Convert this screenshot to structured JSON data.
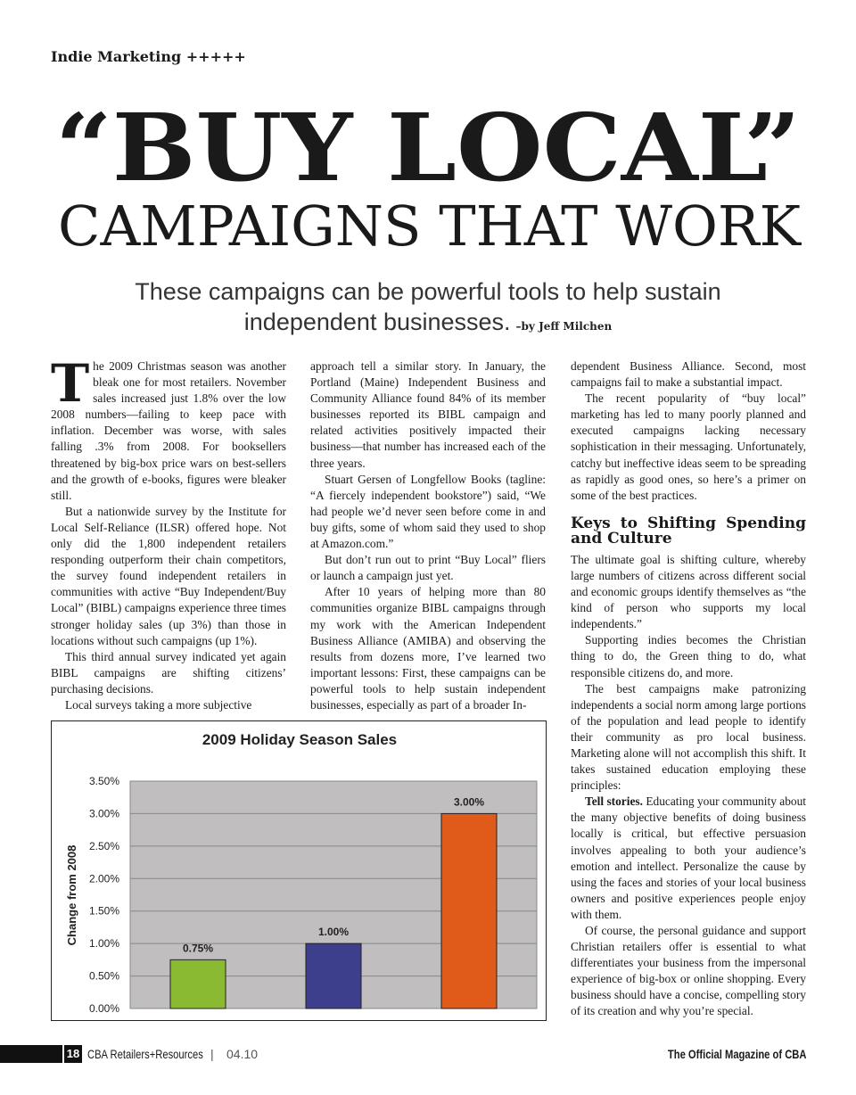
{
  "header": {
    "section": "Indie Marketing +++++"
  },
  "headline": {
    "title": "“BUY LOCAL”",
    "subtitle": "CAMPAIGNS THAT WORK"
  },
  "dek": {
    "text": "These campaigns can be powerful tools to help sustain independent businesses.",
    "byline": "–by Jeff Milchen"
  },
  "body": {
    "columns": [
      [
        {
          "dropcap": "T",
          "text": "he 2009 Christmas season was another bleak one for most retailers. November sales increased just 1.8% over the low 2008 numbers—failing to keep pace with inflation. December was worse, with sales falling .3% from 2008. For booksellers threatened by big-box price wars on best-sellers and the growth of e-books, figures were bleaker still."
        },
        {
          "text": "But a nationwide survey by the Institute for Local Self-Reliance (ILSR) offered hope. Not only did the 1,800 independent retailers responding outperform their chain competitors, the survey found independent retailers in communities with active “Buy Independent/Buy Local” (BIBL) campaigns experience three times stronger holiday sales (up 3%) than those in locations without such campaigns (up 1%)."
        },
        {
          "text": "This third annual survey indicated yet again BIBL campaigns are shifting citizens’ purchasing decisions."
        },
        {
          "text": "Local surveys taking a more subjective"
        }
      ],
      [
        {
          "text": "approach tell a similar story. In January, the Portland (Maine) Independent Business and Community Alliance found 84% of its member businesses reported its BIBL campaign and related activities positively impacted their business—that number has increased each of the three years."
        },
        {
          "text": "Stuart Gersen of Longfellow Books (tagline: “A fiercely independent bookstore”) said, “We had people we’d never seen before come in and buy gifts, some of whom said they used to shop at Amazon.com.”"
        },
        {
          "text": "But don’t run out to print “Buy Local” fliers or launch a campaign just yet."
        },
        {
          "text": "After 10 years of helping more than 80 communities organize BIBL campaigns through my work with the American Independent Business Alliance (AMIBA) and observing the results from dozens more, I’ve learned two important lessons: First, these campaigns can be powerful tools to help sustain independent businesses, especially as part of a broader In-"
        }
      ],
      [
        {
          "text": "dependent Business Alliance. Second, most campaigns fail to make a substantial impact."
        },
        {
          "text": "The recent popularity of “buy local” marketing has led to many poorly planned and executed campaigns lacking necessary sophistication in their messaging. Unfortunately, catchy but ineffective ideas seem to be spreading as rapidly as good ones, so here’s a primer on some of the best practices."
        },
        {
          "heading": "Keys to Shifting Spending and Culture"
        },
        {
          "text": "The ultimate goal is shifting culture, whereby large numbers of citizens across different social and economic groups identify themselves as “the kind of person who supports my local independents.”"
        },
        {
          "text": "Supporting indies becomes the Christian thing to do, the Green thing to do, what responsible citizens do, and more."
        },
        {
          "text": "The best campaigns make patronizing independents a social norm among large portions of the population and lead people to identify their community as pro local business. Marketing alone will not accomplish this shift. It takes sustained education employing these principles:"
        },
        {
          "lead": "Tell stories.",
          "text": "Educating your community about the many objective benefits of doing business locally is critical, but effective persuasion involves appealing to both your audience’s emotion and intellect. Personalize the cause by using the faces and stories of your local business owners and positive experiences people enjoy with them."
        },
        {
          "text": "Of course, the personal guidance and support Christian retailers offer is essential to what differentiates your business from the impersonal experience of big-box or online shopping. Every business should have a concise, compelling story of its creation and why you’re special."
        }
      ]
    ]
  },
  "chart_data": {
    "type": "bar",
    "title": "2009 Holiday Season Sales",
    "y_label": "Change from 2008",
    "categories": [
      null,
      null,
      null
    ],
    "values": [
      0.75,
      1.0,
      3.0
    ],
    "value_labels": [
      "0.75%",
      "1.00%",
      "3.00%"
    ],
    "colors": [
      "#8aba32",
      "#3d3f8c",
      "#e05a1a"
    ],
    "plot_background": "#c0bebe",
    "grid": true,
    "ylim": [
      0,
      3.5
    ],
    "yticks": [
      {
        "value": 0,
        "label": "0.00%"
      },
      {
        "value": 0.5,
        "label": "0.50%"
      },
      {
        "value": 1,
        "label": "1.00%"
      },
      {
        "value": 1.5,
        "label": "1.50%"
      },
      {
        "value": 2,
        "label": "2.00%"
      },
      {
        "value": 2.5,
        "label": "2.50%"
      },
      {
        "value": 3,
        "label": "3.00%"
      },
      {
        "value": 3.5,
        "label": "3.50%"
      }
    ]
  },
  "footer": {
    "page": "18",
    "magazine": "CBA Retailers+Resources",
    "issue": "04.10",
    "tagline": "The Official Magazine of CBA"
  }
}
